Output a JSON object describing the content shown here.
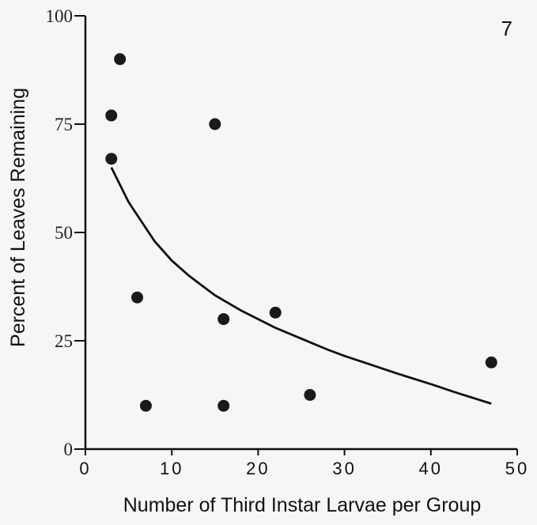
{
  "chart_data": {
    "type": "scatter",
    "panel_label": "7",
    "xlabel": "Number of Third Instar Larvae per Group",
    "ylabel": "Percent of Leaves Remaining",
    "xlim": [
      0,
      50
    ],
    "ylim": [
      0,
      100
    ],
    "xticks": [
      0,
      10,
      20,
      30,
      40,
      50
    ],
    "yticks": [
      0,
      25,
      50,
      75,
      100
    ],
    "grid": false,
    "legend": "none",
    "points": [
      {
        "x": 3,
        "y": 77
      },
      {
        "x": 3,
        "y": 67
      },
      {
        "x": 4,
        "y": 90
      },
      {
        "x": 6,
        "y": 35
      },
      {
        "x": 7,
        "y": 10
      },
      {
        "x": 15,
        "y": 75
      },
      {
        "x": 16,
        "y": 30
      },
      {
        "x": 16,
        "y": 10
      },
      {
        "x": 22,
        "y": 31.5
      },
      {
        "x": 26,
        "y": 12.5
      },
      {
        "x": 47,
        "y": 20
      }
    ],
    "fit_curve": {
      "x": [
        3,
        5,
        8,
        10,
        12,
        15,
        18,
        20,
        22,
        25,
        28,
        30,
        33,
        36,
        40,
        43,
        47
      ],
      "y": [
        65,
        57,
        48,
        43.5,
        40,
        35.5,
        32,
        30,
        28,
        25.5,
        23,
        21.5,
        19.5,
        17.5,
        15,
        13,
        10.5
      ]
    },
    "colors": {
      "points": "#1a1a1a",
      "line": "#111111",
      "background": "#f6f6f6"
    }
  }
}
